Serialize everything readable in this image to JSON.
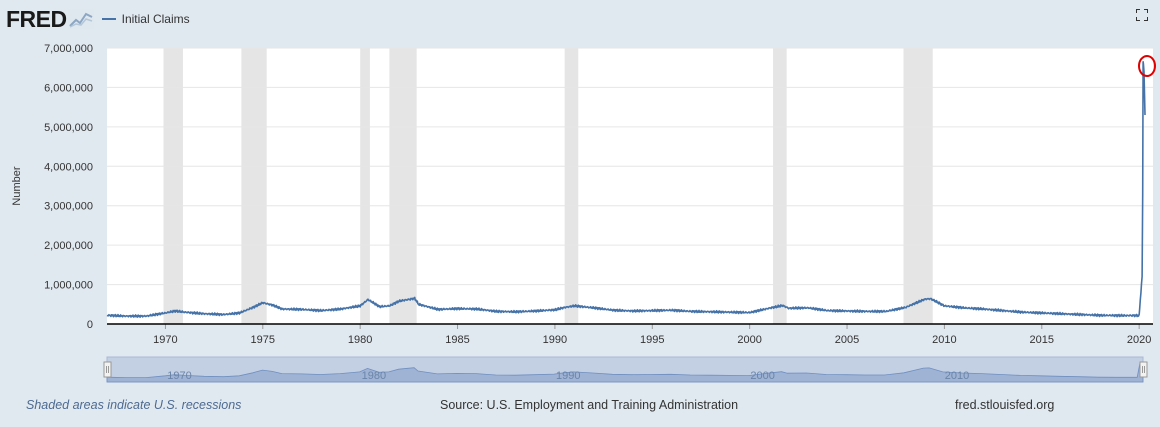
{
  "header": {
    "logo_text": "FRED",
    "legend_label": "Initial Claims"
  },
  "colors": {
    "series": "#4572a7",
    "recession": "#e5e5e5",
    "navigator_fill": "#c3cfe3",
    "annotation": "#e00000",
    "background": "#e1e9f0"
  },
  "icons": {
    "logo": "fred-line-chart-icon",
    "expand": "fullscreen-icon"
  },
  "footer": {
    "note": "Shaded areas indicate U.S. recessions",
    "source": "Source: U.S. Employment and Training Administration",
    "site": "fred.stlouisfed.org"
  },
  "chart_data": {
    "type": "line",
    "title": "",
    "xlabel": "",
    "ylabel": "Number",
    "xlim": [
      1967.0,
      2020.3
    ],
    "ylim": [
      0,
      7000000
    ],
    "yticks": [
      0,
      1000000,
      2000000,
      3000000,
      4000000,
      5000000,
      6000000,
      7000000
    ],
    "ytick_labels": [
      "0",
      "1,000,000",
      "2,000,000",
      "3,000,000",
      "4,000,000",
      "5,000,000",
      "6,000,000",
      "7,000,000"
    ],
    "xticks": [
      1970,
      1975,
      1980,
      1985,
      1990,
      1995,
      2000,
      2005,
      2010,
      2015,
      2020
    ],
    "navigator_ticks": [
      1970,
      1980,
      1990,
      2000,
      2010
    ],
    "grid": true,
    "legend": "top-left",
    "recessions": [
      [
        1969.9,
        1970.9
      ],
      [
        1973.9,
        1975.2
      ],
      [
        1980.0,
        1980.5
      ],
      [
        1981.5,
        1982.9
      ],
      [
        1990.5,
        1991.2
      ],
      [
        2001.2,
        2001.9
      ],
      [
        2007.9,
        2009.4
      ]
    ],
    "series": [
      {
        "name": "Initial Claims",
        "x": [
          1967.0,
          1968.0,
          1969.0,
          1970.0,
          1970.5,
          1971.0,
          1972.0,
          1973.0,
          1973.8,
          1974.5,
          1975.0,
          1975.5,
          1976.0,
          1977.0,
          1978.0,
          1979.0,
          1980.0,
          1980.4,
          1981.0,
          1981.5,
          1982.0,
          1982.8,
          1983.0,
          1984.0,
          1985.0,
          1986.0,
          1987.0,
          1988.0,
          1989.0,
          1990.0,
          1990.5,
          1991.0,
          1992.0,
          1993.0,
          1994.0,
          1995.0,
          1996.0,
          1997.0,
          1998.0,
          1999.0,
          2000.0,
          2001.0,
          2001.7,
          2002.0,
          2003.0,
          2004.0,
          2005.0,
          2006.0,
          2007.0,
          2008.0,
          2009.0,
          2009.3,
          2010.0,
          2011.0,
          2012.0,
          2013.0,
          2014.0,
          2015.0,
          2016.0,
          2017.0,
          2018.0,
          2019.0,
          2020.0,
          2020.15,
          2020.18,
          2020.2,
          2020.22,
          2020.25,
          2020.3
        ],
        "values": [
          220000,
          200000,
          200000,
          280000,
          330000,
          300000,
          260000,
          240000,
          280000,
          420000,
          540000,
          480000,
          380000,
          370000,
          340000,
          380000,
          460000,
          620000,
          440000,
          460000,
          580000,
          650000,
          500000,
          370000,
          390000,
          380000,
          320000,
          310000,
          330000,
          360000,
          420000,
          460000,
          410000,
          350000,
          330000,
          340000,
          350000,
          320000,
          310000,
          300000,
          290000,
          400000,
          470000,
          400000,
          410000,
          340000,
          330000,
          320000,
          320000,
          420000,
          630000,
          640000,
          460000,
          410000,
          380000,
          340000,
          300000,
          280000,
          260000,
          240000,
          220000,
          215000,
          215000,
          1200000,
          3300000,
          6650000,
          6600000,
          6400000,
          5300000
        ]
      }
    ]
  }
}
